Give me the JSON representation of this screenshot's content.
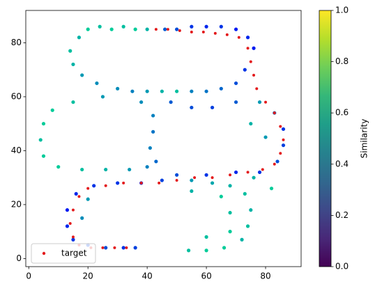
{
  "chart_data": {
    "type": "scatter",
    "xlim": [
      -1,
      92
    ],
    "ylim": [
      -3,
      92
    ],
    "xticks": [
      0,
      20,
      40,
      60,
      80
    ],
    "yticks": [
      0,
      20,
      40,
      60,
      80
    ],
    "point_colormap": "winter",
    "colorbar_colormap": "viridis",
    "colorbar_label": "Similarity",
    "colorbar_lim": [
      0,
      1
    ],
    "colorbar_ticks": [
      {
        "value": 0,
        "label": "0.0"
      },
      {
        "value": 0.2,
        "label": "0.2"
      },
      {
        "value": 0.4,
        "label": "0.4"
      },
      {
        "value": 0.6,
        "label": "0.6"
      },
      {
        "value": 0.8,
        "label": "0.8"
      },
      {
        "value": 1,
        "label": "1.0"
      }
    ],
    "legend": "lower left",
    "points": {
      "x": [
        20,
        24,
        28,
        32,
        36,
        40,
        46,
        50,
        55,
        60,
        65,
        70,
        74,
        76,
        17,
        14,
        15,
        18,
        23,
        30,
        35,
        40,
        45,
        50,
        55,
        60,
        65,
        70,
        73,
        25,
        15,
        8,
        5,
        4,
        5,
        10,
        18,
        26,
        34,
        40,
        38,
        42,
        42,
        41,
        43,
        48,
        55,
        62,
        70,
        78,
        83,
        86,
        86,
        84,
        78,
        70,
        60,
        50,
        45,
        38,
        30,
        22,
        16,
        13,
        13,
        15,
        20,
        26,
        32,
        36,
        55,
        62,
        68,
        73,
        75,
        74,
        72,
        66,
        60,
        54,
        20,
        18,
        55,
        65,
        68,
        68,
        60,
        76,
        82,
        80,
        75
      ],
      "y": [
        85,
        86,
        85,
        86,
        85,
        85,
        85,
        85,
        86,
        86,
        86,
        85,
        82,
        78,
        82,
        77,
        72,
        68,
        65,
        63,
        62,
        62,
        62,
        62,
        62,
        62,
        63,
        65,
        70,
        60,
        58,
        55,
        50,
        44,
        38,
        34,
        33,
        33,
        33,
        34,
        58,
        53,
        47,
        41,
        36,
        58,
        56,
        56,
        58,
        58,
        54,
        48,
        42,
        36,
        32,
        32,
        31,
        31,
        29,
        28,
        28,
        27,
        24,
        18,
        12,
        7,
        5,
        4,
        4,
        4,
        29,
        28,
        27,
        24,
        18,
        12,
        7,
        4,
        3,
        3,
        22,
        15,
        25,
        23,
        17,
        10,
        8,
        30,
        26,
        45,
        50
      ],
      "similarity": [
        0.8,
        0.75,
        0.8,
        0.75,
        0.8,
        0.7,
        0.35,
        0.3,
        0.2,
        0.15,
        0.2,
        0.1,
        0.15,
        0.1,
        0.7,
        0.75,
        0.7,
        0.6,
        0.55,
        0.55,
        0.5,
        0.6,
        0.7,
        0.75,
        0.5,
        0.45,
        0.4,
        0.3,
        0.2,
        0.6,
        0.75,
        0.8,
        0.8,
        0.75,
        0.8,
        0.8,
        0.75,
        0.7,
        0.6,
        0.5,
        0.55,
        0.5,
        0.45,
        0.5,
        0.4,
        0.35,
        0.3,
        0.25,
        0.35,
        0.6,
        0.45,
        0.2,
        0.25,
        0.3,
        0.2,
        0.15,
        0.2,
        0.3,
        0.25,
        0.15,
        0.2,
        0.2,
        0.15,
        0.1,
        0.15,
        0.2,
        0.25,
        0.3,
        0.2,
        0.25,
        0.6,
        0.65,
        0.7,
        0.75,
        0.7,
        0.75,
        0.7,
        0.8,
        0.8,
        0.75,
        0.6,
        0.55,
        0.7,
        0.8,
        0.75,
        0.8,
        0.75,
        0.7,
        0.8,
        0.6,
        0.7
      ]
    },
    "target": {
      "name": "target",
      "color": "#e31a1c",
      "x": [
        43,
        47,
        51,
        55,
        59,
        63,
        67,
        71,
        74,
        75,
        76,
        77,
        80,
        83,
        85,
        86,
        85,
        83,
        79,
        74,
        68,
        62,
        56,
        50,
        44,
        38,
        32,
        26,
        20,
        17,
        15,
        14,
        15,
        17,
        21,
        25,
        29,
        33
      ],
      "y": [
        85,
        85,
        84.5,
        84,
        84,
        83.5,
        83,
        82,
        78,
        73,
        68,
        63,
        58,
        54,
        49,
        44,
        39,
        35,
        33,
        32,
        31,
        30,
        30,
        29,
        28,
        28,
        28,
        27,
        26,
        23,
        18,
        13,
        8,
        5,
        4,
        4,
        4,
        4
      ]
    }
  }
}
